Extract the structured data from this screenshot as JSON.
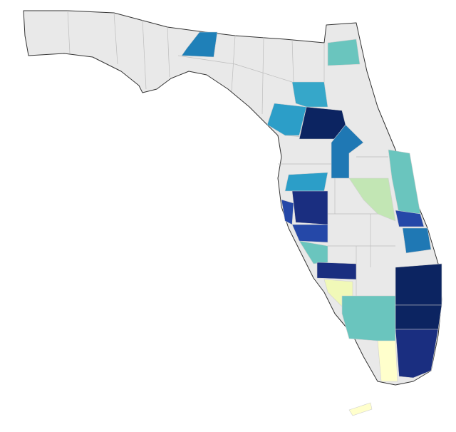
{
  "map": {
    "region_colors": [
      "#1f80b8",
      "#6ac5be",
      "#36a7c9",
      "#0c2461",
      "#2c9ec8",
      "#1f78b4",
      "#6ac5be",
      "#c2e6b4",
      "#2c9ec8",
      "#1a2e80",
      "#2548a8",
      "#2548a8",
      "#6ac5be",
      "#1a2e80",
      "#f1f9b8",
      "#6ac5be",
      "#2548a8",
      "#1f78b4",
      "#0c2461",
      "#0c2461",
      "#1a2e80",
      "#ffffcc",
      "#ffffcc"
    ]
  }
}
